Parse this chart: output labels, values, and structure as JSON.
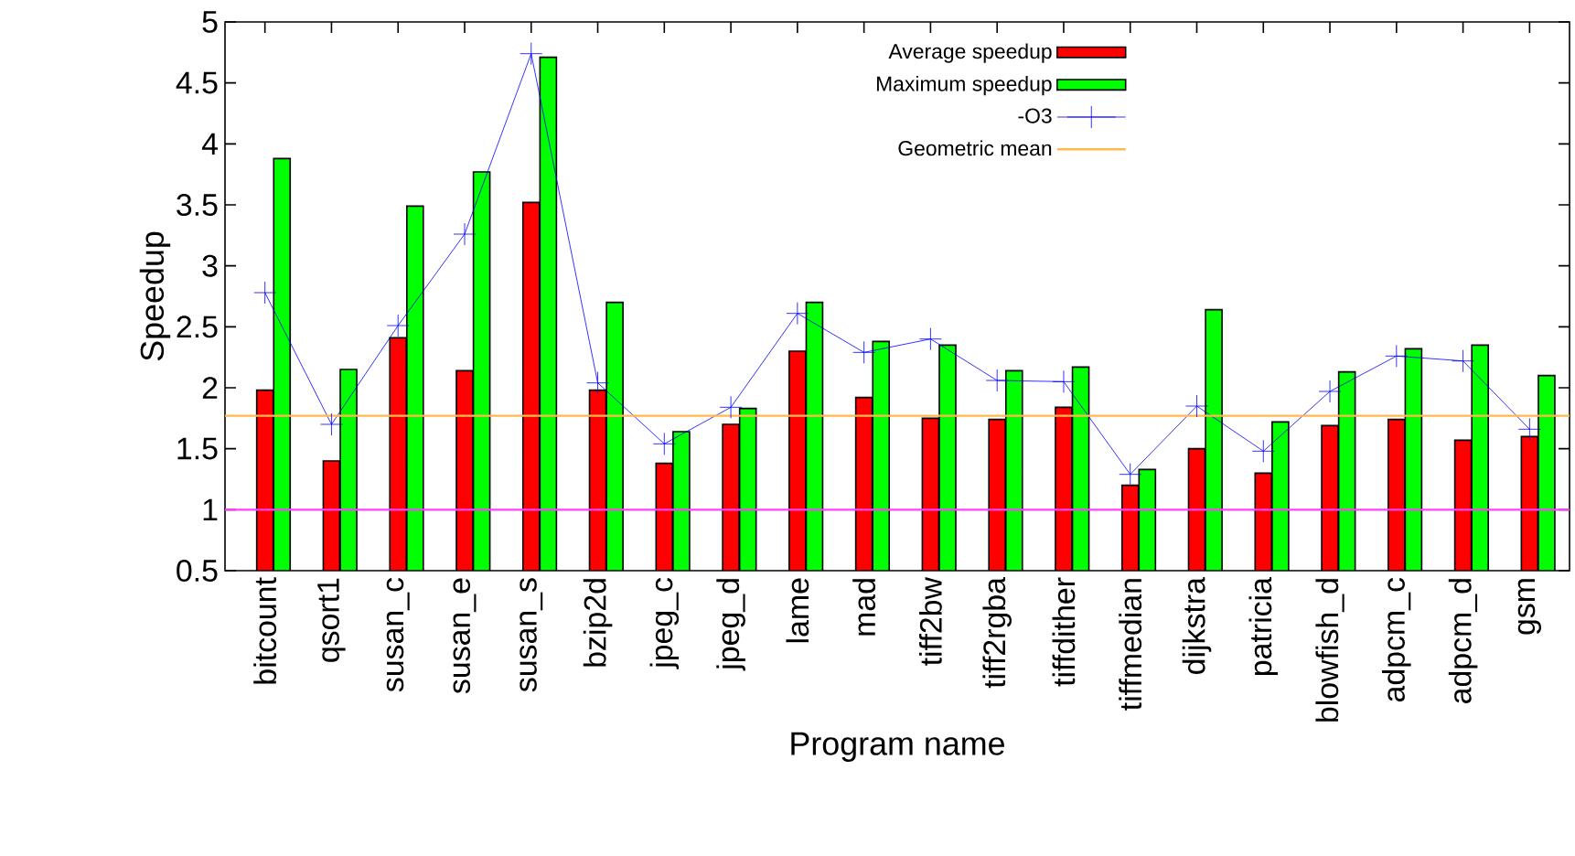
{
  "chart_data": {
    "type": "bar",
    "xlabel": "Program name",
    "ylabel": "Speedup",
    "categories": [
      "bitcount",
      "qsort1",
      "susan_c",
      "susan_e",
      "susan_s",
      "bzip2d",
      "jpeg_c",
      "jpeg_d",
      "lame",
      "mad",
      "tiff2bw",
      "tiff2rgba",
      "tiffdither",
      "tiffmedian",
      "dijkstra",
      "patricia",
      "blowfish_d",
      "adpcm_c",
      "adpcm_d",
      "gsm"
    ],
    "series": [
      {
        "name": "Average speedup",
        "color": "#ff0000",
        "values": [
          1.98,
          1.4,
          2.41,
          2.14,
          3.52,
          1.98,
          1.38,
          1.7,
          2.3,
          1.92,
          1.75,
          1.74,
          1.84,
          1.2,
          1.5,
          1.3,
          1.69,
          1.74,
          1.57,
          1.6
        ]
      },
      {
        "name": "Maximum speedup",
        "color": "#00ff00",
        "values": [
          3.88,
          2.15,
          3.49,
          3.77,
          4.71,
          2.7,
          1.64,
          1.83,
          2.7,
          2.38,
          2.35,
          2.14,
          2.17,
          1.33,
          2.64,
          1.72,
          2.13,
          2.32,
          2.35,
          2.1
        ]
      },
      {
        "name": "-O3",
        "type": "line",
        "color": "#0000ff",
        "marker": "cross",
        "values": [
          2.78,
          1.7,
          2.51,
          3.26,
          4.74,
          2.04,
          1.54,
          1.84,
          2.61,
          2.29,
          2.4,
          2.06,
          2.05,
          1.29,
          1.85,
          1.48,
          1.97,
          2.26,
          2.22,
          1.66
        ]
      }
    ],
    "ylim": [
      0.5,
      5
    ],
    "yticks": [
      0.5,
      1,
      1.5,
      2,
      2.5,
      3,
      3.5,
      4,
      4.5,
      5
    ],
    "ref_lines": [
      {
        "axis": "y",
        "value": 1.77,
        "label": "Geometric mean",
        "color": "#ffb84d"
      },
      {
        "axis": "y",
        "value": 1,
        "color": "#ff40ff"
      }
    ],
    "legend": "top right"
  }
}
